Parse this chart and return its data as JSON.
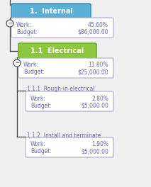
{
  "bg_color": "#f0f0f0",
  "items": [
    {
      "id": "1",
      "label": "1.  Internal",
      "level": 0,
      "box_color": "#5baed4",
      "text_color": "#ffffff",
      "border_color": "#4a90b8",
      "work": "45.60%",
      "budget": "$86,000.00",
      "has_minus": true,
      "is_header": true
    },
    {
      "id": "1.1",
      "label": "1.1  Electrical",
      "level": 1,
      "box_color": "#8dc63f",
      "text_color": "#ffffff",
      "border_color": "#6fa830",
      "work": "11.80%",
      "budget": "$25,000.00",
      "has_minus": true,
      "is_header": true
    },
    {
      "id": "1.1.1",
      "label": "1.1.1  Rough-in electrical",
      "level": 2,
      "box_color": null,
      "text_color": "#7070b0",
      "border_color": null,
      "work": "2.80%",
      "budget": "$5,000.00",
      "has_minus": false,
      "is_header": false
    },
    {
      "id": "1.1.2",
      "label": "1.1.2  Install and terminate",
      "level": 2,
      "box_color": null,
      "text_color": "#7070b0",
      "border_color": null,
      "work": "1.90%",
      "budget": "$5,000.00",
      "has_minus": false,
      "is_header": false
    }
  ],
  "line_color": "#444444",
  "detail_box_bg": "#ffffff",
  "detail_box_border": "#aaaacc",
  "detail_label_color": "#6666aa",
  "detail_value_color": "#6666aa",
  "work_label": "Work:",
  "budget_label": "Budget:"
}
